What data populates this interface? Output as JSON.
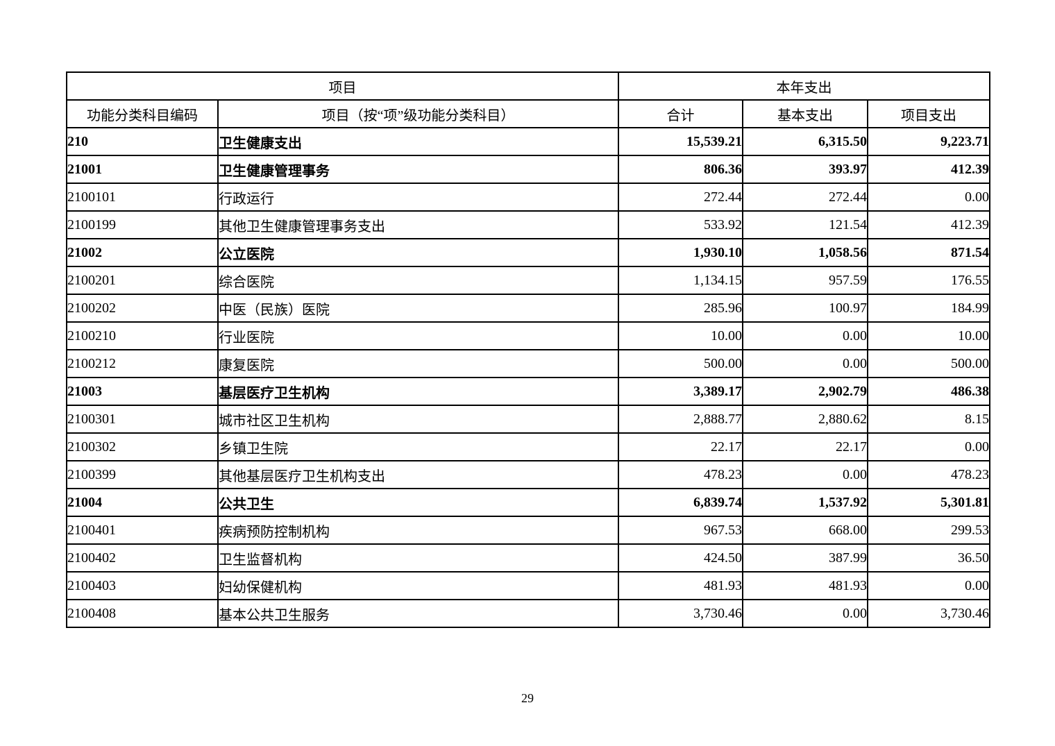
{
  "table": {
    "header": {
      "group_project": "项目",
      "group_expenditure": "本年支出",
      "col_code": "功能分类科目编码",
      "col_item": "项目（按“项”级功能分类科目）",
      "col_total": "合计",
      "col_basic": "基本支出",
      "col_project": "项目支出"
    },
    "rows": [
      {
        "code": "210",
        "item": "卫生健康支出",
        "total": "15,539.21",
        "basic": "6,315.50",
        "project": "9,223.71",
        "bold": true
      },
      {
        "code": "21001",
        "item": "卫生健康管理事务",
        "total": "806.36",
        "basic": "393.97",
        "project": "412.39",
        "bold": true
      },
      {
        "code": "2100101",
        "item": "行政运行",
        "total": "272.44",
        "basic": "272.44",
        "project": "0.00",
        "bold": false
      },
      {
        "code": "2100199",
        "item": "其他卫生健康管理事务支出",
        "total": "533.92",
        "basic": "121.54",
        "project": "412.39",
        "bold": false
      },
      {
        "code": "21002",
        "item": "公立医院",
        "total": "1,930.10",
        "basic": "1,058.56",
        "project": "871.54",
        "bold": true
      },
      {
        "code": "2100201",
        "item": "综合医院",
        "total": "1,134.15",
        "basic": "957.59",
        "project": "176.55",
        "bold": false
      },
      {
        "code": "2100202",
        "item": "中医（民族）医院",
        "total": "285.96",
        "basic": "100.97",
        "project": "184.99",
        "bold": false
      },
      {
        "code": "2100210",
        "item": "行业医院",
        "total": "10.00",
        "basic": "0.00",
        "project": "10.00",
        "bold": false
      },
      {
        "code": "2100212",
        "item": "康复医院",
        "total": "500.00",
        "basic": "0.00",
        "project": "500.00",
        "bold": false
      },
      {
        "code": "21003",
        "item": "基层医疗卫生机构",
        "total": "3,389.17",
        "basic": "2,902.79",
        "project": "486.38",
        "bold": true
      },
      {
        "code": "2100301",
        "item": "城市社区卫生机构",
        "total": "2,888.77",
        "basic": "2,880.62",
        "project": "8.15",
        "bold": false
      },
      {
        "code": "2100302",
        "item": "乡镇卫生院",
        "total": "22.17",
        "basic": "22.17",
        "project": "0.00",
        "bold": false
      },
      {
        "code": "2100399",
        "item": "其他基层医疗卫生机构支出",
        "total": "478.23",
        "basic": "0.00",
        "project": "478.23",
        "bold": false
      },
      {
        "code": "21004",
        "item": "公共卫生",
        "total": "6,839.74",
        "basic": "1,537.92",
        "project": "5,301.81",
        "bold": true
      },
      {
        "code": "2100401",
        "item": "疾病预防控制机构",
        "total": "967.53",
        "basic": "668.00",
        "project": "299.53",
        "bold": false
      },
      {
        "code": "2100402",
        "item": "卫生监督机构",
        "total": "424.50",
        "basic": "387.99",
        "project": "36.50",
        "bold": false
      },
      {
        "code": "2100403",
        "item": "妇幼保健机构",
        "total": "481.93",
        "basic": "481.93",
        "project": "0.00",
        "bold": false
      },
      {
        "code": "2100408",
        "item": "基本公共卫生服务",
        "total": "3,730.46",
        "basic": "0.00",
        "project": "3,730.46",
        "bold": false
      }
    ]
  },
  "page_number": "29"
}
